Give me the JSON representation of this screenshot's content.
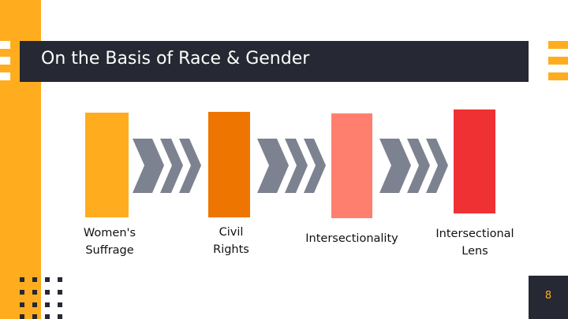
{
  "slide": {
    "title": "On the Basis of Race & Gender",
    "page_number": "8"
  },
  "steps": [
    {
      "label_line1": "Women's",
      "label_line2": "Suffrage",
      "color": "#FFAD1F"
    },
    {
      "label_line1": "Civil",
      "label_line2": "Rights",
      "color": "#EE7600"
    },
    {
      "label_line1": "Intersectionality",
      "label_line2": "",
      "color": "#FF7F6E"
    },
    {
      "label_line1": "Intersectional",
      "label_line2": "Lens",
      "color": "#EF3134"
    }
  ],
  "colors": {
    "accent": "#FFAD1F",
    "dark": "#262833",
    "arrow": "#7D8290"
  },
  "icons": {
    "arrows": "chevron-arrow-icon"
  }
}
